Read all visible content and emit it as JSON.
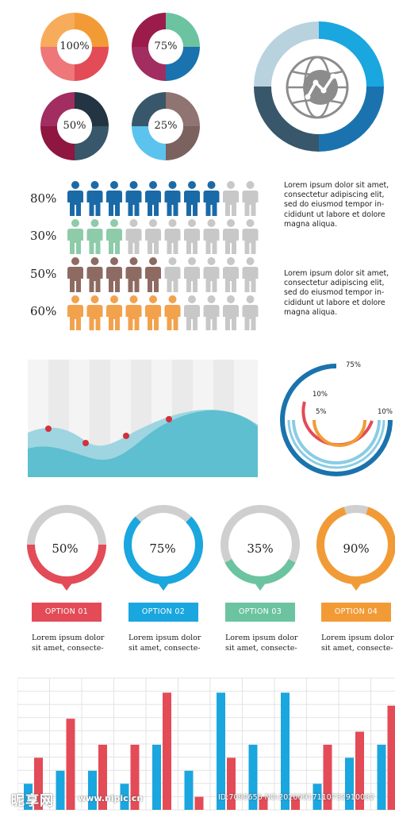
{
  "colors": {
    "orange": "#F29B36",
    "red": "#E34B57",
    "pink": "#EE7779",
    "teal": "#6CC3A0",
    "blue": "#1A73AE",
    "maroon": "#9B1B4A",
    "plum": "#A12D61",
    "dark_slate": "#39576A",
    "navy": "#233443",
    "taupe": "#8F7471",
    "sky": "#5BC3EE",
    "brown": "#7B625F",
    "light_blue": "#B8D2DE",
    "cyan": "#1AA6DF",
    "grey": "#C8C8C8",
    "wave": "#5DBFCF"
  },
  "top_donuts": [
    {
      "label": "100%"
    },
    {
      "label": "75%"
    },
    {
      "label": "50%"
    },
    {
      "label": "25%"
    }
  ],
  "people_rows": [
    {
      "label": "80%",
      "filled": 8,
      "total": 10,
      "color": "#1A6AA8"
    },
    {
      "label": "30%",
      "filled": 3,
      "total": 10,
      "color": "#8ECBA9"
    },
    {
      "label": "50%",
      "filled": 5,
      "total": 10,
      "color": "#8D6B62"
    },
    {
      "label": "60%",
      "filled": 6,
      "total": 10,
      "color": "#F2A24C"
    }
  ],
  "lorem_blocks": [
    {
      "lines": [
        "Lorem ipsum dolor sit amet,",
        "consectetur adipiscing elit,",
        "sed do eiusmod tempor in-",
        "cididunt ut labore et dolore",
        "magna aliqua."
      ]
    },
    {
      "lines": [
        "Lorem ipsum dolor sit amet,",
        "consectetur adipiscing elit,",
        "sed do eiusmod tempor in-",
        "cididunt ut labore et dolore",
        "magna aliqua."
      ]
    }
  ],
  "arc_labels": [
    "75%",
    "10%",
    "5%",
    "10%"
  ],
  "options": [
    {
      "pct": "50%",
      "value": 0.5,
      "label": "OPTION 01",
      "color": "#E34B57",
      "desc1": "Lorem ipsum dolor",
      "desc2": "sit amet, consecte-"
    },
    {
      "pct": "75%",
      "value": 0.75,
      "label": "OPTION 02",
      "color": "#1AA6DF",
      "desc1": "Lorem ipsum dolor",
      "desc2": "sit amet, consecte-"
    },
    {
      "pct": "35%",
      "value": 0.35,
      "label": "OPTION 03",
      "color": "#6CC3A0",
      "desc1": "Lorem ipsum dolor",
      "desc2": "sit amet, consecte-"
    },
    {
      "pct": "90%",
      "value": 0.9,
      "label": "OPTION 04",
      "color": "#F29B36",
      "desc1": "Lorem ipsum dolor",
      "desc2": "sit amet, consecte-"
    }
  ],
  "chart_data": [
    {
      "type": "area",
      "title": "",
      "xlabel": "",
      "ylabel": "",
      "highlight_points": 4,
      "colors": {
        "back": "#9ED5E1",
        "front": "#5DBFCF",
        "points": "#D32F3C"
      }
    },
    {
      "type": "bar",
      "title": "",
      "xlabel": "",
      "ylabel": "",
      "ylim": [
        0,
        100
      ],
      "grid": true,
      "series": [
        {
          "color": "#1AA6DF",
          "values": [
            20,
            30,
            30,
            20,
            50,
            30,
            90,
            50,
            90,
            20,
            40,
            50
          ]
        },
        {
          "color": "#E34B57",
          "values": [
            40,
            70,
            50,
            50,
            90,
            10,
            40,
            10,
            10,
            50,
            60,
            80
          ]
        }
      ]
    }
  ],
  "watermark": {
    "logo": "昵享网",
    "site": "www.nipic.cn",
    "id": "ID:7090656 NO:20200917110732910082"
  }
}
